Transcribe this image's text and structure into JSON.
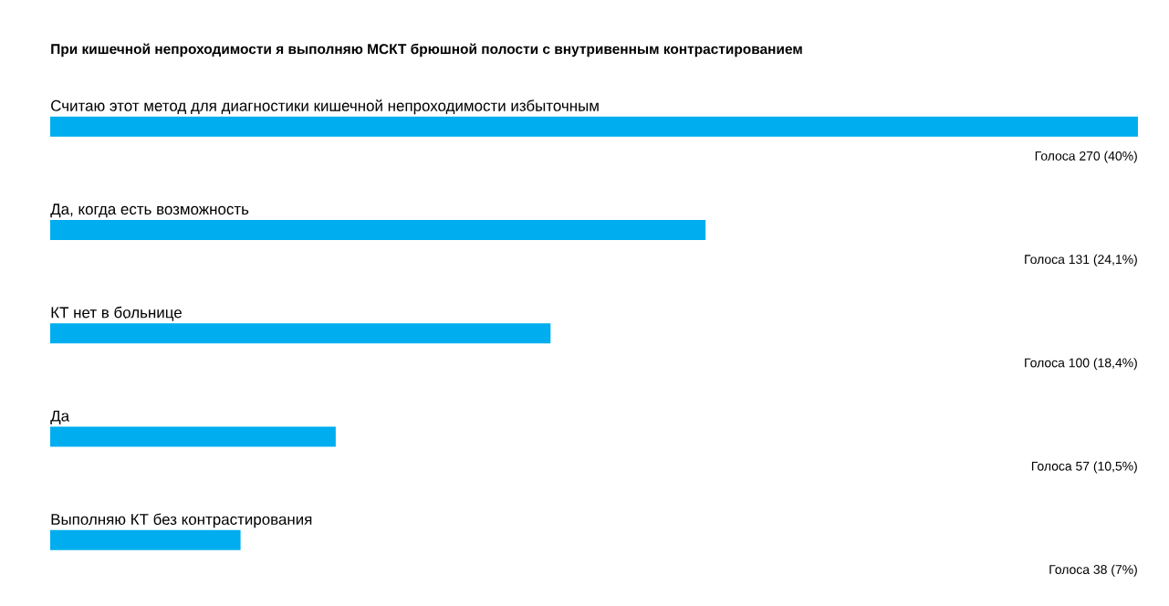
{
  "chart_data": {
    "type": "bar",
    "orientation": "horizontal",
    "title": "При кишечной непроходимости я выполняю МСКТ брюшной полости с внутривенным контрастированием",
    "categories": [
      "Считаю этот метод для диагностики кишечной непроходимости избыточным",
      "Да, когда есть возможность",
      "КТ нет в больнице",
      "Да",
      "Выполняю КТ без контрастирования"
    ],
    "values": [
      40,
      24.1,
      18.4,
      10.5,
      7
    ],
    "value_labels": [
      "Голоса 270 (40%)",
      "Голоса 131 (24,1%)",
      "Голоса 100 (18,4%)",
      "Голоса 57 (10,5%)",
      "Голоса 38 (7%)"
    ],
    "color": "#00aeef",
    "xlim": [
      0,
      40
    ]
  }
}
